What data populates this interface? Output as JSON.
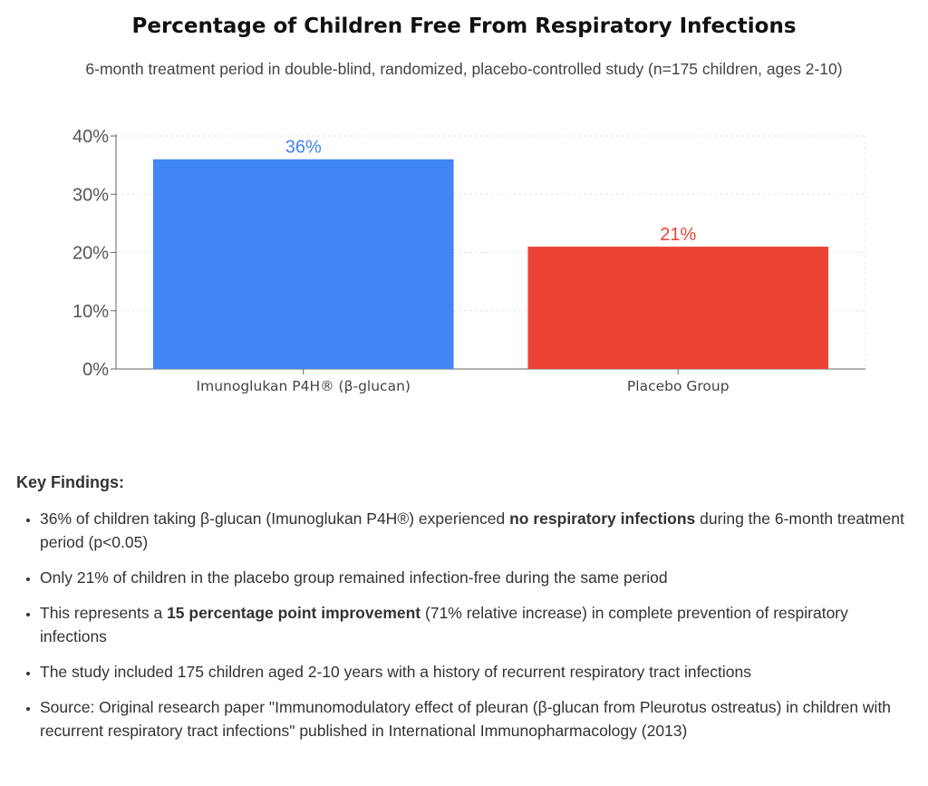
{
  "chart_data": {
    "type": "bar",
    "title": "Percentage of Children Free From Respiratory Infections",
    "subtitle": "6-month treatment period in double-blind, randomized, placebo-controlled study (n=175 children, ages 2-10)",
    "categories": [
      "Imunoglukan P4H® (β-glucan)",
      "Placebo Group"
    ],
    "values": [
      36,
      21
    ],
    "data_labels": [
      "36%",
      "21%"
    ],
    "bar_colors": [
      "#4285f4",
      "#ea4335"
    ],
    "ylim": [
      0,
      40
    ],
    "yticks": [
      0,
      10,
      20,
      30,
      40
    ],
    "ytick_labels": [
      "0%",
      "10%",
      "20%",
      "30%",
      "40%"
    ],
    "xlabel": "",
    "ylabel": "",
    "grid": true
  },
  "findings": {
    "heading": "Key Findings:",
    "items": [
      {
        "pre": "36% of children taking β-glucan (Imunoglukan P4H®) experienced ",
        "bold": "no respiratory infections",
        "post": " during the 6-month treatment period (p<0.05)"
      },
      {
        "pre": "Only 21% of children in the placebo group remained infection-free during the same period",
        "bold": "",
        "post": ""
      },
      {
        "pre": "This represents a ",
        "bold": "15 percentage point improvement",
        "post": " (71% relative increase) in complete prevention of respiratory infections"
      },
      {
        "pre": "The study included 175 children aged 2-10 years with a history of recurrent respiratory tract infections",
        "bold": "",
        "post": ""
      },
      {
        "pre": "Source: Original research paper \"Immunomodulatory effect of pleuran (β-glucan from Pleurotus ostreatus) in children with recurrent respiratory tract infections\" published in International Immunopharmacology (2013)",
        "bold": "",
        "post": ""
      }
    ]
  }
}
